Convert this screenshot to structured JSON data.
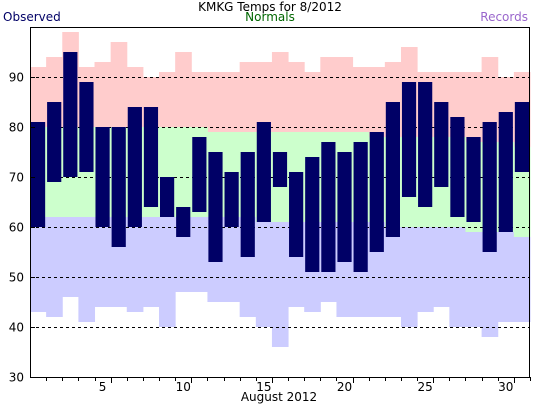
{
  "chart_data": {
    "type": "bar",
    "title": "KMKG Temps for 8/2012",
    "xlabel": "August 2012",
    "ylabel": "",
    "xlim": [
      1,
      31
    ],
    "ylim": [
      30,
      100
    ],
    "x_ticks": [
      5,
      10,
      15,
      20,
      25,
      30
    ],
    "y_ticks": [
      30,
      40,
      50,
      60,
      70,
      80,
      90
    ],
    "grid": "dashed horizontal",
    "legend": [
      "Observed",
      "Normals",
      "Records"
    ],
    "colors": {
      "observed": "#000066",
      "normals": "#ccffcc",
      "record_high": "#ffcccc",
      "record_low": "#ccccff",
      "observed_label": "#000066",
      "normals_label": "#006600",
      "records_label": "#9966cc"
    },
    "days": [
      1,
      2,
      3,
      4,
      5,
      6,
      7,
      8,
      9,
      10,
      11,
      12,
      13,
      14,
      15,
      16,
      17,
      18,
      19,
      20,
      21,
      22,
      23,
      24,
      25,
      26,
      27,
      28,
      29,
      30,
      31
    ],
    "series": [
      {
        "name": "Observed",
        "high": [
          81,
          85,
          95,
          89,
          80,
          80,
          84,
          84,
          70,
          64,
          78,
          75,
          71,
          75,
          81,
          75,
          71,
          74,
          77,
          75,
          77,
          79,
          85,
          89,
          89,
          85,
          82,
          78,
          81,
          83,
          85
        ],
        "low": [
          60,
          69,
          70,
          71,
          60,
          56,
          60,
          64,
          62,
          58,
          63,
          53,
          60,
          54,
          61,
          68,
          54,
          51,
          51,
          53,
          51,
          55,
          58,
          66,
          64,
          68,
          62,
          61,
          55,
          59,
          71
        ]
      },
      {
        "name": "Normals",
        "high": [
          80,
          80,
          80,
          80,
          80,
          80,
          80,
          80,
          80,
          80,
          80,
          79,
          79,
          79,
          79,
          79,
          79,
          79,
          79,
          79,
          79,
          78,
          78,
          78,
          78,
          78,
          78,
          77,
          77,
          77,
          76
        ],
        "low": [
          62,
          62,
          62,
          62,
          62,
          62,
          62,
          62,
          62,
          62,
          62,
          62,
          62,
          62,
          61,
          61,
          61,
          61,
          61,
          61,
          61,
          61,
          60,
          60,
          60,
          60,
          60,
          59,
          59,
          59,
          58
        ]
      },
      {
        "name": "Records",
        "high": [
          92,
          94,
          99,
          92,
          93,
          97,
          92,
          90,
          91,
          95,
          91,
          91,
          91,
          93,
          93,
          95,
          93,
          91,
          94,
          94,
          92,
          92,
          93,
          96,
          91,
          91,
          91,
          91,
          94,
          90,
          91
        ],
        "low": [
          43,
          42,
          46,
          41,
          44,
          44,
          43,
          44,
          40,
          47,
          47,
          45,
          45,
          42,
          40,
          36,
          44,
          43,
          45,
          42,
          42,
          42,
          42,
          40,
          43,
          44,
          40,
          40,
          38,
          41,
          41
        ]
      }
    ]
  }
}
